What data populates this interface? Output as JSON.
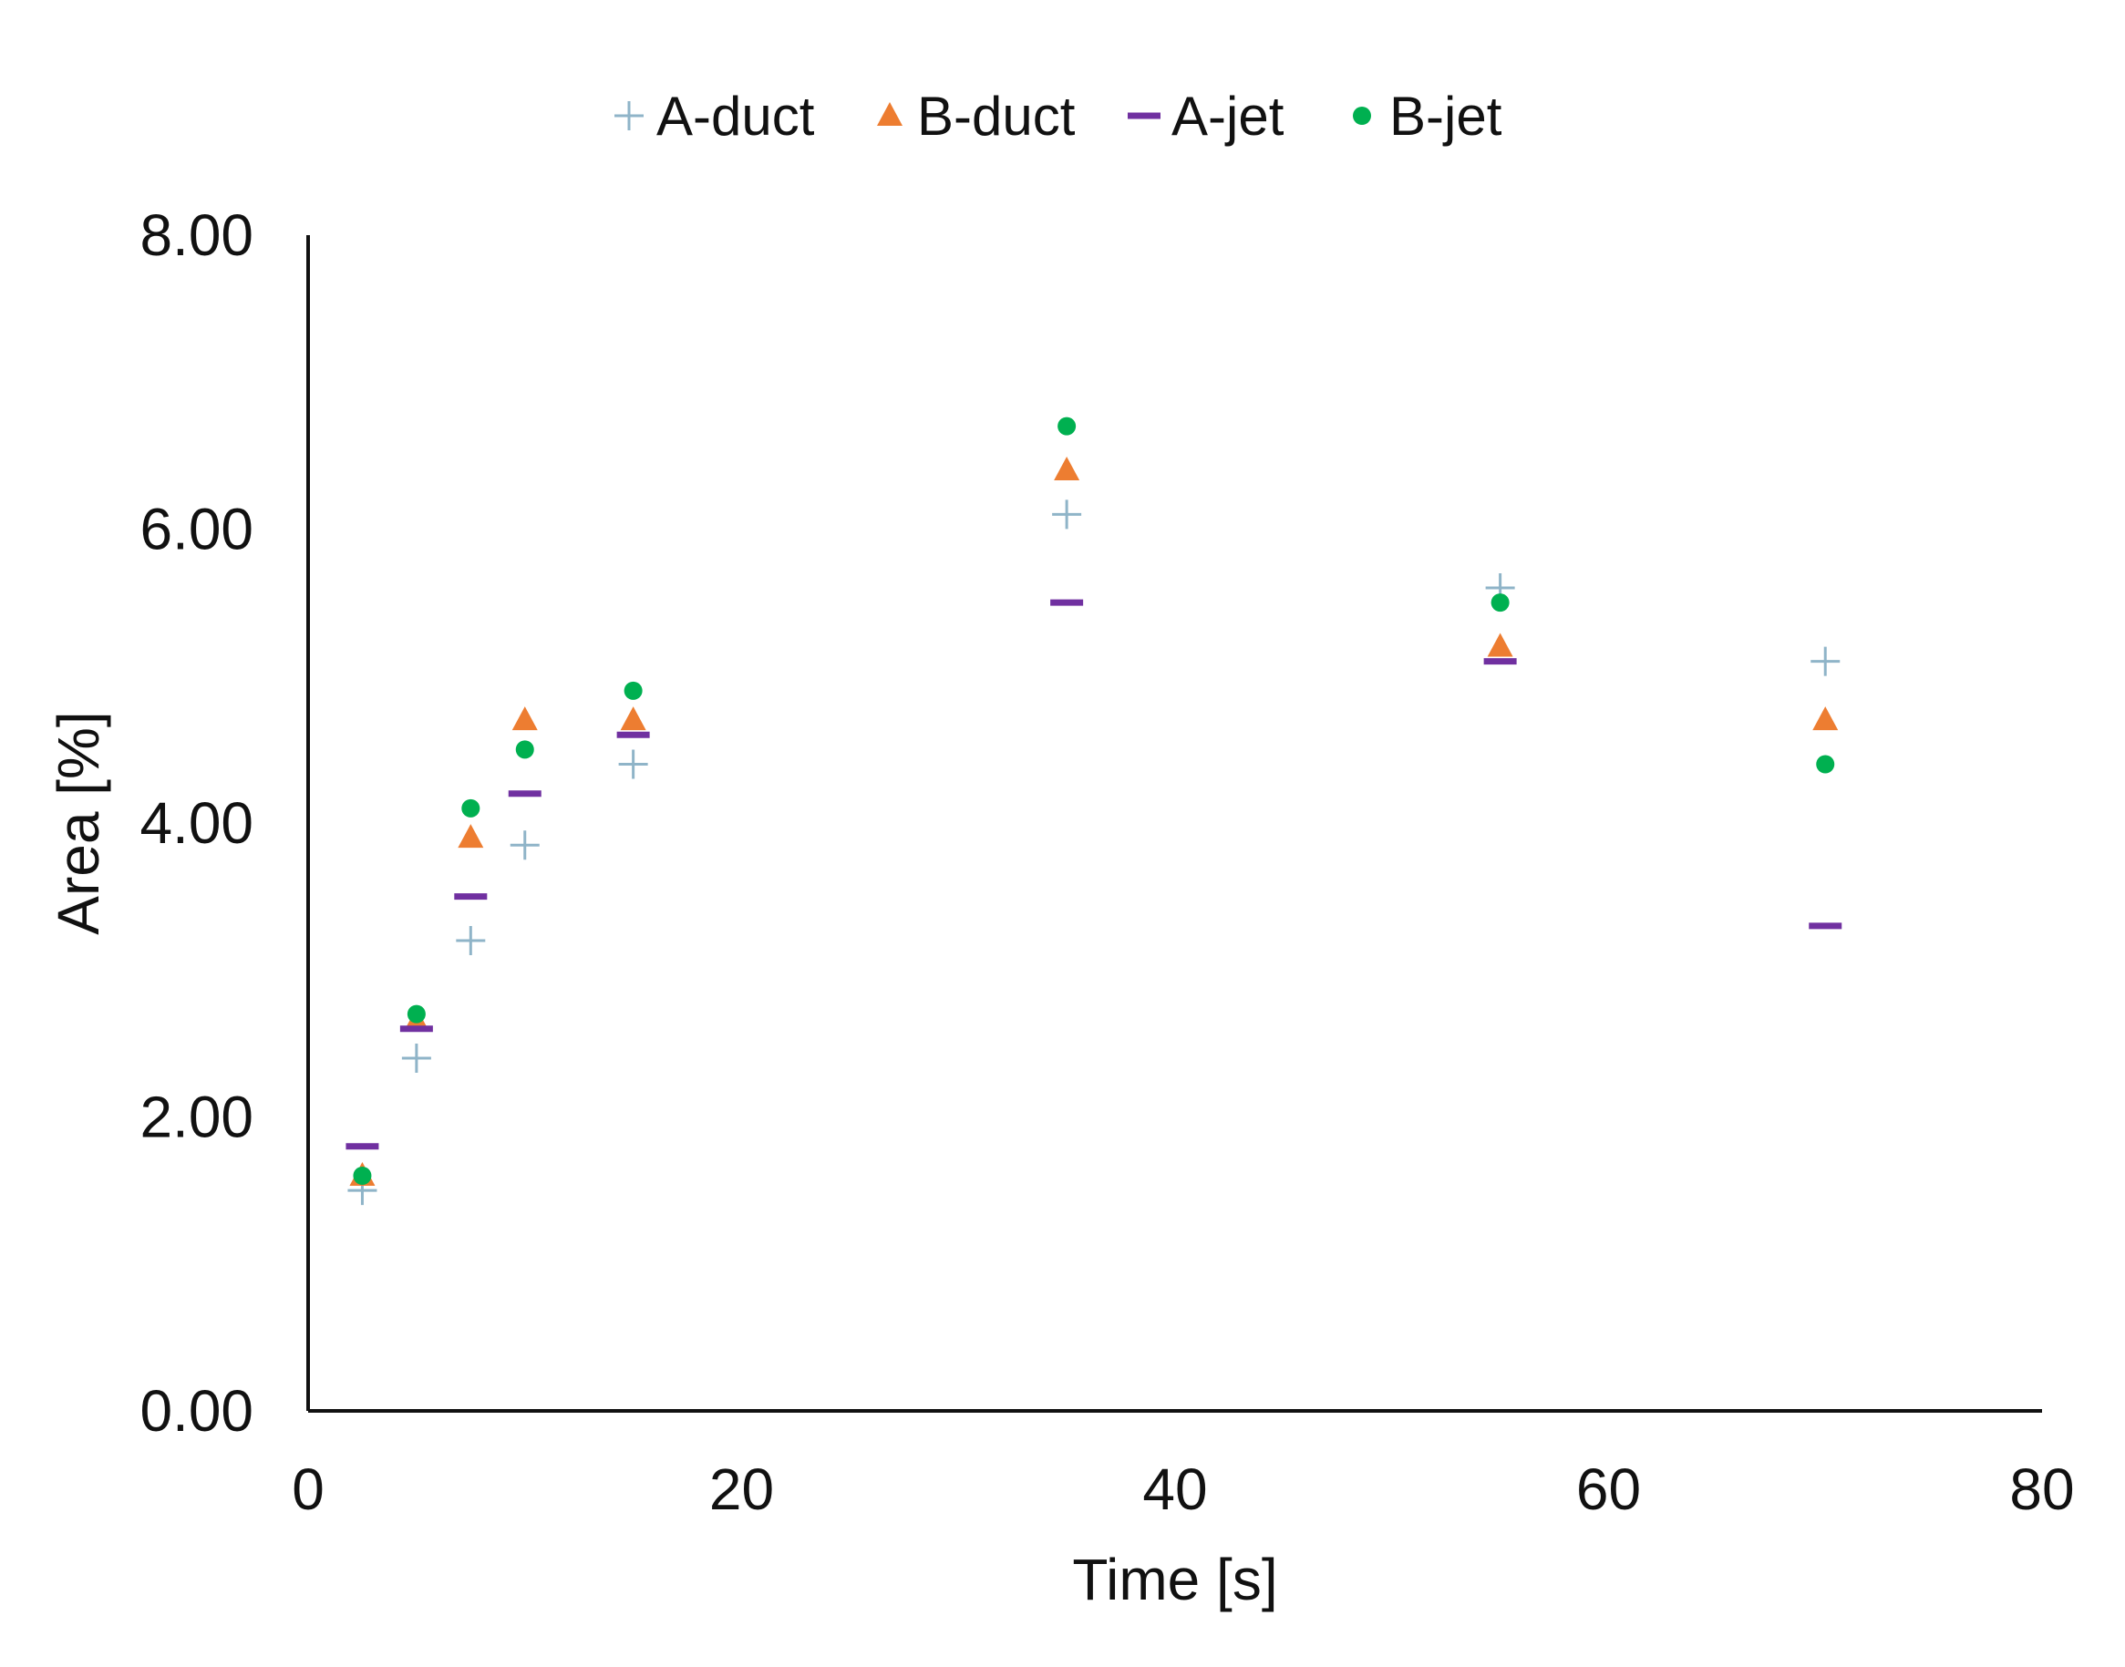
{
  "chart_data": {
    "type": "scatter",
    "xlabel": "Time [s]",
    "ylabel": "Area [%]",
    "xlim": [
      0,
      80
    ],
    "ylim": [
      0,
      8
    ],
    "x_ticks": [
      "0",
      "20",
      "40",
      "60",
      "80"
    ],
    "y_ticks": [
      "0.00",
      "2.00",
      "4.00",
      "6.00",
      "8.00"
    ],
    "grid": false,
    "legend_position": "top",
    "series": [
      {
        "name": "A-duct",
        "marker": "plus",
        "color": "#8fb4c8",
        "points": [
          [
            2.5,
            1.5
          ],
          [
            5,
            2.4
          ],
          [
            7.5,
            3.2
          ],
          [
            10,
            3.85
          ],
          [
            15,
            4.4
          ],
          [
            35,
            6.1
          ],
          [
            55,
            5.6
          ],
          [
            70,
            5.1
          ]
        ]
      },
      {
        "name": "B-duct",
        "marker": "triangle",
        "color": "#ed7d31",
        "points": [
          [
            2.5,
            1.6
          ],
          [
            5,
            2.65
          ],
          [
            7.5,
            3.9
          ],
          [
            10,
            4.7
          ],
          [
            15,
            4.7
          ],
          [
            35,
            6.4
          ],
          [
            55,
            5.2
          ],
          [
            70,
            4.7
          ]
        ]
      },
      {
        "name": "A-jet",
        "marker": "dash",
        "color": "#7030a0",
        "points": [
          [
            2.5,
            1.8
          ],
          [
            5,
            2.6
          ],
          [
            7.5,
            3.5
          ],
          [
            10,
            4.2
          ],
          [
            15,
            4.6
          ],
          [
            35,
            5.5
          ],
          [
            55,
            5.1
          ],
          [
            70,
            3.3
          ]
        ]
      },
      {
        "name": "B-jet",
        "marker": "circle",
        "color": "#00b050",
        "points": [
          [
            2.5,
            1.6
          ],
          [
            5,
            2.7
          ],
          [
            7.5,
            4.1
          ],
          [
            10,
            4.5
          ],
          [
            15,
            4.9
          ],
          [
            35,
            6.7
          ],
          [
            55,
            5.5
          ],
          [
            70,
            4.4
          ]
        ]
      }
    ]
  }
}
